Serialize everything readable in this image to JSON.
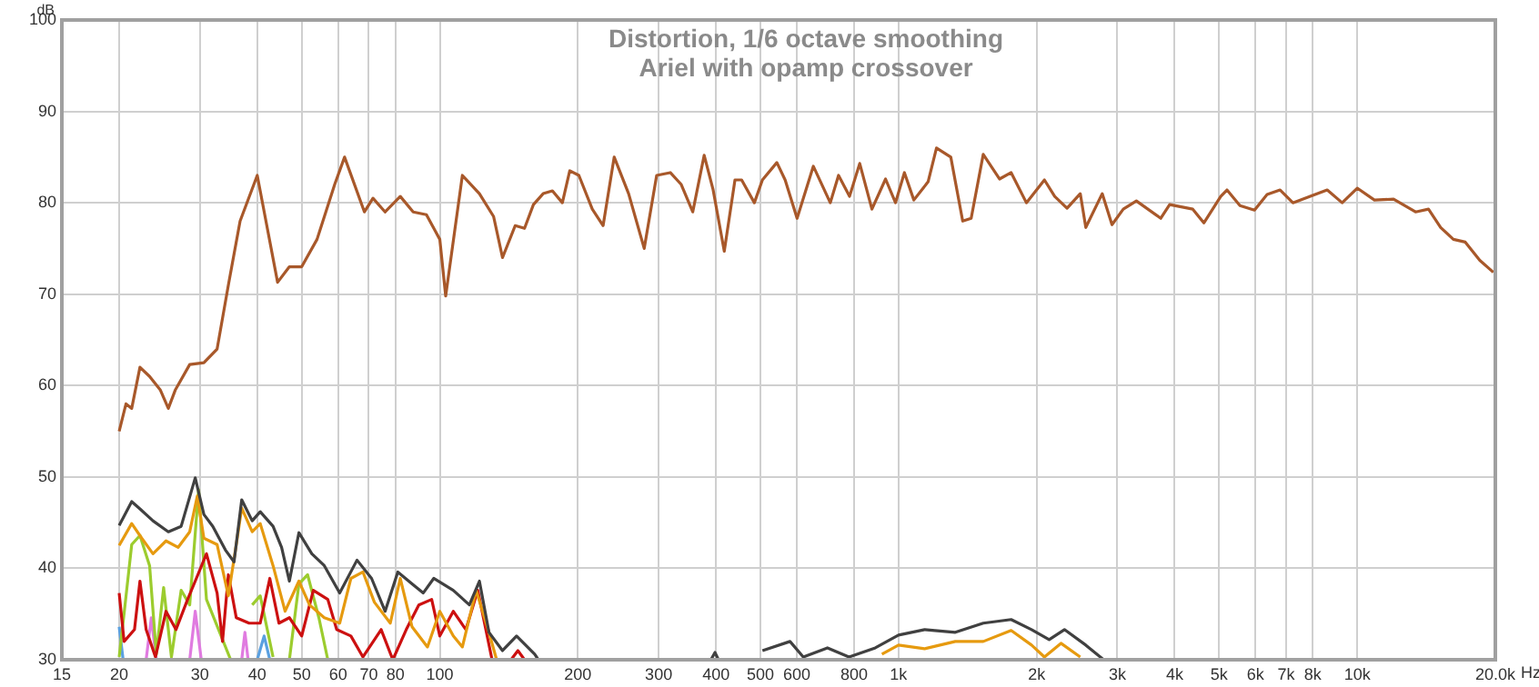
{
  "chart_data": {
    "type": "line",
    "title": "Distortion, 1/6 octave smoothing",
    "subtitle": "Ariel with opamp crossover",
    "ylabel": "dB",
    "xlabel": "Hz",
    "log": "x",
    "grid": true,
    "legend": false,
    "marker": "none",
    "line_style": "solid",
    "xlim": [
      15,
      20000
    ],
    "ylim": [
      30,
      100
    ],
    "xticks": [
      15,
      20,
      30,
      40,
      50,
      60,
      70,
      80,
      100,
      200,
      300,
      400,
      500,
      600,
      800,
      {
        "value": 1000,
        "label": "1k"
      },
      {
        "value": 2000,
        "label": "2k"
      },
      {
        "value": 3000,
        "label": "3k"
      },
      {
        "value": 4000,
        "label": "4k"
      },
      {
        "value": 5000,
        "label": "5k"
      },
      {
        "value": 6000,
        "label": "6k"
      },
      {
        "value": 7000,
        "label": "7k"
      },
      {
        "value": 8000,
        "label": "8k"
      },
      {
        "value": 10000,
        "label": "10k"
      },
      {
        "value": 20000,
        "label": "20.0k"
      }
    ],
    "yticks": [
      30,
      40,
      50,
      60,
      70,
      80,
      90,
      100
    ],
    "series": [
      {
        "color": "#a8582a",
        "x": [
          20,
          20.7,
          21.3,
          22.2,
          23.3,
          24.6,
          25.6,
          26.5,
          28.5,
          30.6,
          32.7,
          34.6,
          36.7,
          40,
          44.3,
          47,
          50,
          54,
          59,
          62,
          68.5,
          71.5,
          76,
          82,
          87.5,
          93.5,
          100,
          103,
          112,
          122,
          131,
          137,
          146,
          153,
          160,
          168,
          176,
          185,
          192,
          201,
          215,
          227,
          240,
          258,
          279,
          297,
          318,
          336,
          356,
          377,
          394,
          417,
          440,
          455,
          485,
          505,
          543,
          566,
          601,
          652,
          710,
          740,
          782,
          823,
          875,
          937,
          985,
          1030,
          1080,
          1160,
          1210,
          1300,
          1380,
          1440,
          1530,
          1660,
          1760,
          1900,
          2080,
          2190,
          2330,
          2490,
          2560,
          2780,
          2920,
          3090,
          3300,
          3730,
          3900,
          4380,
          4630,
          5040,
          5200,
          5550,
          5970,
          6360,
          6790,
          7240,
          7900,
          8600,
          9270,
          10000,
          10900,
          12000,
          13400,
          14300,
          15200,
          16200,
          17200,
          18500,
          19800
        ],
        "values": [
          55,
          58,
          57.5,
          62,
          61,
          59.5,
          57.5,
          59.5,
          62.3,
          62.5,
          64,
          71,
          78,
          83,
          71.3,
          73,
          73,
          76,
          82,
          85,
          79,
          80.5,
          79,
          80.7,
          79,
          78.7,
          76,
          69.8,
          83,
          81,
          78.5,
          74,
          77.5,
          77.2,
          79.8,
          81,
          81.3,
          80,
          83.5,
          83,
          79.3,
          77.5,
          85,
          81,
          75,
          83,
          83.3,
          82,
          79,
          85.2,
          81.5,
          74.7,
          82.5,
          82.5,
          80,
          82.5,
          84.4,
          82.5,
          78.3,
          84,
          80,
          83,
          80.7,
          84.3,
          79.3,
          82.6,
          80,
          83.3,
          80.3,
          82.3,
          86,
          85,
          78,
          78.3,
          85.3,
          82.6,
          83.3,
          80,
          82.5,
          80.7,
          79.4,
          81,
          77.3,
          81,
          77.6,
          79.3,
          80.2,
          78.3,
          79.8,
          79.3,
          77.8,
          80.7,
          81.4,
          79.7,
          79.2,
          80.9,
          81.4,
          80,
          80.7,
          81.4,
          80,
          81.6,
          80.3,
          80.4,
          79,
          79.3,
          77.3,
          76,
          75.7,
          73.7,
          72.4
        ]
      },
      {
        "color": "#404040",
        "x": [
          20,
          21.3,
          22.2,
          23.7,
          25.6,
          27.3,
          29.3,
          30.6,
          32,
          34.1,
          35.6,
          37,
          39,
          40.6,
          43.3,
          45.2,
          47,
          49.3,
          52.6,
          56,
          60.5,
          66,
          71,
          76,
          81,
          87,
          92,
          97,
          107,
          116,
          122,
          128,
          137,
          147,
          161,
          164,
          170,
          390,
          398,
          405,
          412,
          505,
          580,
          620,
          700,
          780,
          890,
          1000,
          1140,
          1330,
          1530,
          1760,
          1950,
          2130,
          2300,
          2560,
          2800
        ],
        "values": [
          44.7,
          47.3,
          46.5,
          45.2,
          44,
          44.6,
          49.9,
          45.9,
          44.6,
          42,
          40.7,
          47.5,
          45.2,
          46.2,
          44.6,
          42.3,
          38.6,
          43.9,
          41.6,
          40.3,
          37.3,
          40.9,
          38.9,
          35.3,
          39.6,
          38.3,
          37.3,
          38.9,
          37.6,
          36,
          38.6,
          33,
          31,
          32.6,
          30.6,
          30,
          null,
          30,
          30.8,
          30,
          null,
          31,
          32,
          30.3,
          31.3,
          30.3,
          31.3,
          32.7,
          33.3,
          33,
          34,
          34.4,
          33.3,
          32.2,
          33.3,
          31.6,
          30
        ]
      },
      {
        "color": "#e69a0f",
        "x": [
          20,
          21.3,
          22.4,
          23.7,
          25.3,
          26.9,
          28.5,
          29.6,
          30.6,
          32.7,
          34.6,
          36,
          37,
          39,
          40.6,
          43.3,
          46,
          49.3,
          52,
          56,
          60.5,
          64,
          68,
          72,
          78,
          82,
          87,
          94,
          100,
          107,
          112,
          120,
          128,
          133,
          500,
          920,
          1000,
          1140,
          1330,
          1530,
          1760,
          1950,
          2080,
          2260,
          2490
        ],
        "values": [
          42.5,
          44.9,
          43.3,
          41.6,
          43,
          42.3,
          44,
          47.9,
          43.3,
          42.6,
          37,
          42.6,
          46.6,
          44,
          44.9,
          40.3,
          35.3,
          38.6,
          36,
          34.6,
          34,
          38.9,
          39.6,
          36.3,
          34,
          38.9,
          33.6,
          31.4,
          35.3,
          32.6,
          31.4,
          37.6,
          33,
          30,
          null,
          30.6,
          31.6,
          31.2,
          32,
          32,
          33.2,
          31.6,
          30.3,
          31.8,
          30.3
        ]
      },
      {
        "color": "#cc1010",
        "x": [
          20,
          20.5,
          21.6,
          22.2,
          22.9,
          24,
          25.3,
          26.6,
          28.2,
          29.3,
          31,
          32.7,
          33.6,
          34.6,
          36,
          38.4,
          40.6,
          42.6,
          44.6,
          47,
          50,
          53,
          57,
          59.6,
          64,
          68,
          74.5,
          79,
          84.5,
          90,
          96,
          100,
          107,
          114,
          121,
          130,
          135,
          143,
          148,
          153
        ],
        "values": [
          37.3,
          32,
          33.3,
          38.6,
          33.3,
          30.3,
          35.3,
          33.3,
          36.6,
          38.6,
          41.6,
          37.3,
          32,
          39.3,
          34.6,
          34,
          34,
          38.9,
          34,
          34.6,
          32.6,
          37.6,
          36.6,
          33.3,
          32.6,
          30.3,
          33.3,
          30,
          33.3,
          36,
          36.6,
          32.6,
          35.3,
          33.3,
          37.6,
          30,
          null,
          30,
          31,
          30
        ]
      },
      {
        "color": "#9ccc2e",
        "x": [
          20,
          20.6,
          21.3,
          22.2,
          23.3,
          24.1,
          25,
          26,
          27.3,
          28.5,
          29.8,
          31,
          35,
          37,
          39,
          40.6,
          43.3,
          45,
          47,
          49.3,
          51.5,
          54.5,
          57
        ],
        "values": [
          30.3,
          36,
          42.6,
          43.6,
          40.3,
          30.6,
          37.9,
          30.3,
          37.6,
          36,
          48.6,
          36.6,
          30,
          null,
          36,
          37,
          30.3,
          null,
          30,
          38.3,
          39.3,
          34.6,
          30
        ]
      },
      {
        "color": "#e07be0",
        "x": [
          22.9,
          23.5,
          24.1,
          26,
          28.5,
          29.3,
          30.2,
          32,
          37,
          37.6,
          38.2
        ],
        "values": [
          30,
          34.6,
          30,
          null,
          30,
          35.3,
          30,
          null,
          30,
          33,
          30
        ]
      },
      {
        "color": "#5aa0e0",
        "x": [
          20,
          20.4,
          30,
          40,
          41.4,
          42.6
        ],
        "values": [
          33.6,
          30,
          null,
          30,
          32.6,
          30
        ]
      }
    ]
  }
}
